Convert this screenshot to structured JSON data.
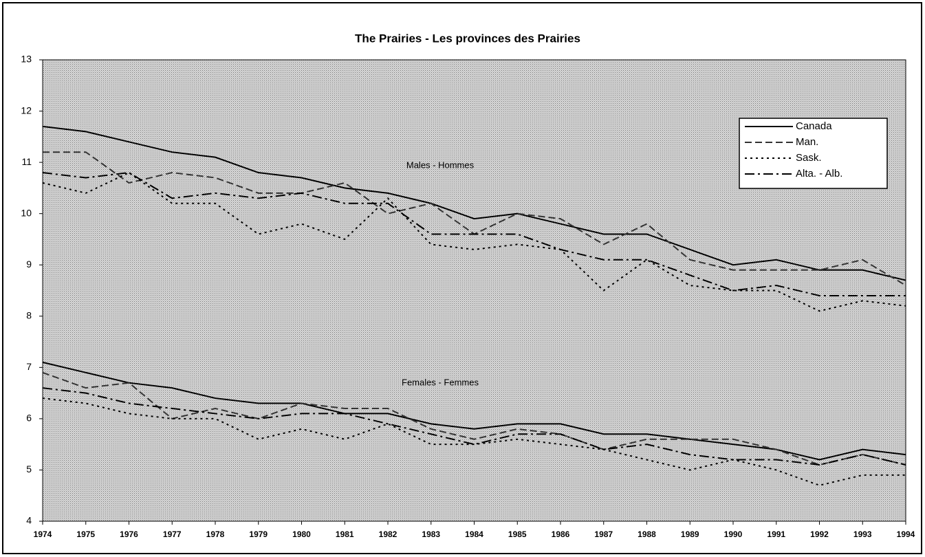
{
  "chart_data": {
    "type": "line",
    "title": "The Prairies - Les provinces des Prairies",
    "annotations": [
      "Males - Hommes",
      "Females - Femmes"
    ],
    "x": [
      1974,
      1975,
      1976,
      1977,
      1978,
      1979,
      1980,
      1981,
      1982,
      1983,
      1984,
      1985,
      1986,
      1987,
      1988,
      1989,
      1990,
      1991,
      1992,
      1993,
      1994
    ],
    "xlim": [
      1974,
      1994
    ],
    "xticks": [
      1974,
      1975,
      1976,
      1977,
      1978,
      1979,
      1980,
      1981,
      1982,
      1983,
      1984,
      1985,
      1986,
      1987,
      1988,
      1989,
      1990,
      1991,
      1992,
      1993,
      1994
    ],
    "ylim": [
      4,
      13
    ],
    "yticks": [
      4,
      5,
      6,
      7,
      8,
      9,
      10,
      11,
      12,
      13
    ],
    "legend": "upper right",
    "series": [
      {
        "name": "Canada",
        "color": "#000000",
        "line_style": "solid",
        "males": [
          11.7,
          11.6,
          11.4,
          11.2,
          11.1,
          10.8,
          10.7,
          10.5,
          10.4,
          10.2,
          9.9,
          10.0,
          9.8,
          9.6,
          9.6,
          9.3,
          9.0,
          9.1,
          8.9,
          8.9,
          8.7
        ],
        "females": [
          7.1,
          6.9,
          6.7,
          6.6,
          6.4,
          6.3,
          6.3,
          6.1,
          6.1,
          5.9,
          5.8,
          5.9,
          5.9,
          5.7,
          5.7,
          5.6,
          5.5,
          5.4,
          5.2,
          5.4,
          5.3
        ]
      },
      {
        "name": "Man.",
        "color": "#333333",
        "line_style": "dashed",
        "males": [
          11.2,
          11.2,
          10.6,
          10.8,
          10.7,
          10.4,
          10.4,
          10.6,
          10.0,
          10.2,
          9.6,
          10.0,
          9.9,
          9.4,
          9.8,
          9.1,
          8.9,
          8.9,
          8.9,
          9.1,
          8.6
        ],
        "females": [
          6.9,
          6.6,
          6.7,
          6.0,
          6.2,
          6.0,
          6.3,
          6.2,
          6.2,
          5.8,
          5.6,
          5.8,
          5.7,
          5.4,
          5.6,
          5.6,
          5.6,
          5.4,
          5.1,
          5.3,
          5.1
        ]
      },
      {
        "name": "Sask.",
        "color": "#000000",
        "line_style": "dotted",
        "males": [
          10.6,
          10.4,
          10.8,
          10.2,
          10.2,
          9.6,
          9.8,
          9.5,
          10.3,
          9.4,
          9.3,
          9.4,
          9.3,
          8.5,
          9.1,
          8.6,
          8.5,
          8.5,
          8.1,
          8.3,
          8.2
        ],
        "females": [
          6.4,
          6.3,
          6.1,
          6.0,
          6.0,
          5.6,
          5.8,
          5.6,
          5.9,
          5.5,
          5.5,
          5.6,
          5.5,
          5.4,
          5.2,
          5.0,
          5.2,
          5.0,
          4.7,
          4.9,
          4.9
        ]
      },
      {
        "name": "Alta. - Alb.",
        "color": "#000000",
        "line_style": "dashdot",
        "males": [
          10.8,
          10.7,
          10.8,
          10.3,
          10.4,
          10.3,
          10.4,
          10.2,
          10.2,
          9.6,
          9.6,
          9.6,
          9.3,
          9.1,
          9.1,
          8.8,
          8.5,
          8.6,
          8.4,
          8.4,
          8.4
        ],
        "females": [
          6.6,
          6.5,
          6.3,
          6.2,
          6.1,
          6.0,
          6.1,
          6.1,
          5.9,
          5.7,
          5.5,
          5.7,
          5.7,
          5.4,
          5.5,
          5.3,
          5.2,
          5.2,
          5.1,
          5.3,
          5.1
        ]
      }
    ]
  }
}
